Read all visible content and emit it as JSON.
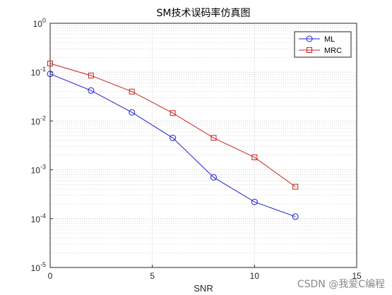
{
  "chart_data": {
    "type": "line",
    "title": "SM技术误码率仿真图",
    "xlabel": "SNR",
    "ylabel": "",
    "xlim": [
      0,
      15
    ],
    "ylim": [
      1e-05,
      1
    ],
    "yscale": "log",
    "grid": true,
    "minor_grid": true,
    "legend_position": "top-right",
    "x_ticks": [
      "0",
      "5",
      "10",
      "15"
    ],
    "y_ticks": [
      {
        "base": "10",
        "exp": "0"
      },
      {
        "base": "10",
        "exp": "-1"
      },
      {
        "base": "10",
        "exp": "-2"
      },
      {
        "base": "10",
        "exp": "-3"
      },
      {
        "base": "10",
        "exp": "-4"
      },
      {
        "base": "10",
        "exp": "-5"
      }
    ],
    "series": [
      {
        "name": "ML",
        "color": "#1f1fcc",
        "marker": "circle",
        "x": [
          0,
          2,
          4,
          6,
          8,
          10,
          12
        ],
        "y": [
          0.092,
          0.042,
          0.015,
          0.0045,
          0.0007,
          0.00022,
          0.00011
        ]
      },
      {
        "name": "MRC",
        "color": "#cc2020",
        "marker": "square",
        "x": [
          0,
          2,
          4,
          6,
          8,
          10,
          12
        ],
        "y": [
          0.15,
          0.085,
          0.04,
          0.0145,
          0.0045,
          0.0018,
          0.00045
        ]
      }
    ]
  },
  "watermark": "CSDN @我爱C编程"
}
